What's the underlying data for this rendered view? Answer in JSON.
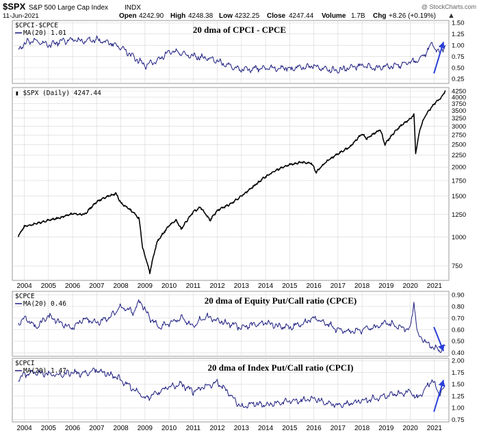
{
  "header": {
    "symbol": "$SPX",
    "description": "S&P 500 Large Cap Index",
    "exchange": "INDX",
    "date": "11-Jun-2021",
    "watermark": "@ StockCharts.com",
    "open_label": "Open",
    "open": "4242.90",
    "high_label": "High",
    "high": "4248.38",
    "low_label": "Low",
    "low": "4232.25",
    "close_label": "Close",
    "close": "4247.44",
    "volume_label": "Volume",
    "volume": "1.7B",
    "chg_label": "Chg",
    "chg": "+8.26 (+0.19%)"
  },
  "colors": {
    "cpci_cpce": "#1c1c80",
    "spx": "#000000",
    "cpce": "#1c1c80",
    "cpci": "#1c1c80",
    "arrow": "#2a3fd8",
    "grid": "#d6d6d6",
    "frame": "#9a9a9a"
  },
  "chart_data": [
    {
      "id": "cpci_cpce",
      "type": "line",
      "legend_series": "$CPCI-$CPCE",
      "legend_ma": "MA(20) 1.01",
      "title": "20 dma of CPCI - CPCE",
      "ylim": [
        0.15,
        1.55
      ],
      "yticks": [
        "1.50",
        "1.25",
        "1.00",
        "0.75",
        "0.50",
        "0.25"
      ],
      "ytick_values": [
        1.5,
        1.25,
        1.0,
        0.75,
        0.5,
        0.25
      ],
      "x": [
        2003.75,
        2004.0,
        2004.5,
        2005.0,
        2005.5,
        2006.0,
        2006.5,
        2007.0,
        2007.5,
        2008.0,
        2008.5,
        2009.0,
        2009.5,
        2010.0,
        2010.5,
        2011.0,
        2011.5,
        2012.0,
        2012.5,
        2013.0,
        2013.5,
        2014.0,
        2014.5,
        2015.0,
        2015.5,
        2016.0,
        2016.5,
        2017.0,
        2017.5,
        2018.0,
        2018.5,
        2019.0,
        2019.5,
        2020.0,
        2020.3,
        2020.6,
        2020.9,
        2021.2,
        2021.45
      ],
      "values": [
        0.9,
        1.05,
        1.1,
        1.0,
        1.08,
        1.12,
        1.1,
        1.12,
        1.05,
        0.95,
        0.75,
        0.55,
        0.65,
        0.85,
        0.82,
        0.75,
        0.72,
        0.65,
        0.55,
        0.45,
        0.48,
        0.5,
        0.5,
        0.48,
        0.5,
        0.55,
        0.45,
        0.45,
        0.5,
        0.55,
        0.5,
        0.52,
        0.55,
        0.62,
        0.65,
        0.8,
        1.05,
        0.8,
        1.0
      ],
      "arrow": "up"
    },
    {
      "id": "spx",
      "type": "line",
      "legend_series": "$SPX (Daily) 4247.44",
      "scale": "log",
      "ylim": [
        650,
        4400
      ],
      "yticks": [
        "4250",
        "4000",
        "3750",
        "3500",
        "3250",
        "3000",
        "2750",
        "2500",
        "2250",
        "2000",
        "1750",
        "1500",
        "1250",
        "1000",
        "750"
      ],
      "ytick_values": [
        4250,
        4000,
        3750,
        3500,
        3250,
        3000,
        2750,
        2500,
        2250,
        2000,
        1750,
        1500,
        1250,
        1000,
        750
      ],
      "x": [
        2003.75,
        2004.0,
        2004.5,
        2005.0,
        2005.5,
        2006.0,
        2006.5,
        2007.0,
        2007.5,
        2007.8,
        2008.0,
        2008.5,
        2008.75,
        2008.9,
        2009.0,
        2009.2,
        2009.5,
        2010.0,
        2010.3,
        2010.5,
        2011.0,
        2011.3,
        2011.7,
        2012.0,
        2012.5,
        2013.0,
        2013.5,
        2014.0,
        2014.5,
        2015.0,
        2015.5,
        2015.9,
        2016.1,
        2016.5,
        2017.0,
        2017.5,
        2018.0,
        2018.2,
        2018.75,
        2018.95,
        2019.0,
        2019.5,
        2020.0,
        2020.15,
        2020.22,
        2020.4,
        2020.6,
        2021.0,
        2021.3,
        2021.45
      ],
      "values": [
        1010,
        1110,
        1140,
        1180,
        1210,
        1260,
        1250,
        1420,
        1500,
        1540,
        1400,
        1280,
        1200,
        900,
        830,
        700,
        950,
        1120,
        1180,
        1080,
        1280,
        1340,
        1180,
        1300,
        1380,
        1500,
        1650,
        1820,
        1950,
        2050,
        2100,
        2080,
        1900,
        2100,
        2280,
        2450,
        2780,
        2650,
        2900,
        2500,
        2550,
        2950,
        3230,
        3350,
        2300,
        2900,
        3300,
        3750,
        4000,
        4247.44
      ]
    },
    {
      "id": "cpce",
      "type": "line",
      "legend_series": "$CPCE",
      "legend_ma": "MA(20) 0.46",
      "title": "20 dma of Equity Put/Call ratio (CPCE)",
      "ylim": [
        0.37,
        0.93
      ],
      "yticks": [
        "0.90",
        "0.80",
        "0.70",
        "0.60",
        "0.50",
        "0.40"
      ],
      "ytick_values": [
        0.9,
        0.8,
        0.7,
        0.6,
        0.5,
        0.4
      ],
      "x": [
        2003.75,
        2004.0,
        2004.5,
        2005.0,
        2005.5,
        2006.0,
        2006.5,
        2007.0,
        2007.5,
        2008.0,
        2008.5,
        2008.8,
        2009.2,
        2009.6,
        2010.0,
        2010.5,
        2011.0,
        2011.5,
        2012.0,
        2012.5,
        2013.0,
        2013.5,
        2014.0,
        2014.5,
        2015.0,
        2015.5,
        2016.0,
        2016.5,
        2017.0,
        2017.5,
        2018.0,
        2018.5,
        2019.0,
        2019.5,
        2020.0,
        2020.15,
        2020.3,
        2020.6,
        2020.9,
        2021.2,
        2021.45
      ],
      "values": [
        0.65,
        0.7,
        0.62,
        0.72,
        0.65,
        0.62,
        0.7,
        0.66,
        0.7,
        0.8,
        0.75,
        0.85,
        0.7,
        0.62,
        0.66,
        0.7,
        0.63,
        0.72,
        0.68,
        0.65,
        0.62,
        0.64,
        0.66,
        0.63,
        0.62,
        0.65,
        0.7,
        0.66,
        0.6,
        0.58,
        0.6,
        0.62,
        0.66,
        0.63,
        0.6,
        0.85,
        0.55,
        0.5,
        0.45,
        0.42,
        0.46
      ],
      "arrow": "down"
    },
    {
      "id": "cpci",
      "type": "line",
      "legend_series": "$CPCI",
      "legend_ma": "MA(20) 1.47",
      "title": "20 dma of Index Put/Call ratio (CPCI)",
      "ylim": [
        0.7,
        2.05
      ],
      "yticks": [
        "2.00",
        "1.75",
        "1.50",
        "1.25",
        "1.00",
        "0.75"
      ],
      "ytick_values": [
        2.0,
        1.75,
        1.5,
        1.25,
        1.0,
        0.75
      ],
      "x": [
        2003.75,
        2004.0,
        2004.5,
        2005.0,
        2005.5,
        2006.0,
        2006.5,
        2007.0,
        2007.5,
        2008.0,
        2008.5,
        2009.0,
        2009.5,
        2010.0,
        2010.5,
        2011.0,
        2011.5,
        2012.0,
        2012.5,
        2013.0,
        2013.5,
        2014.0,
        2014.5,
        2015.0,
        2015.5,
        2016.0,
        2016.5,
        2017.0,
        2017.5,
        2018.0,
        2018.5,
        2019.0,
        2019.5,
        2020.0,
        2020.3,
        2020.6,
        2020.9,
        2021.2,
        2021.45
      ],
      "values": [
        1.6,
        1.7,
        1.75,
        1.72,
        1.7,
        1.75,
        1.72,
        1.8,
        1.72,
        1.6,
        1.4,
        1.2,
        1.3,
        1.45,
        1.5,
        1.35,
        1.45,
        1.55,
        1.3,
        1.0,
        1.1,
        1.05,
        1.1,
        1.15,
        1.15,
        1.2,
        1.1,
        1.05,
        1.1,
        1.15,
        1.2,
        1.25,
        1.3,
        1.35,
        1.2,
        1.4,
        1.6,
        1.3,
        1.47
      ],
      "arrow": "up"
    }
  ],
  "x_axis": {
    "years": [
      "2004",
      "2005",
      "2006",
      "2007",
      "2008",
      "2009",
      "2010",
      "2011",
      "2012",
      "2013",
      "2014",
      "2015",
      "2016",
      "2017",
      "2018",
      "2019",
      "2020",
      "2021"
    ],
    "xlim": [
      2003.5,
      2021.6
    ]
  }
}
